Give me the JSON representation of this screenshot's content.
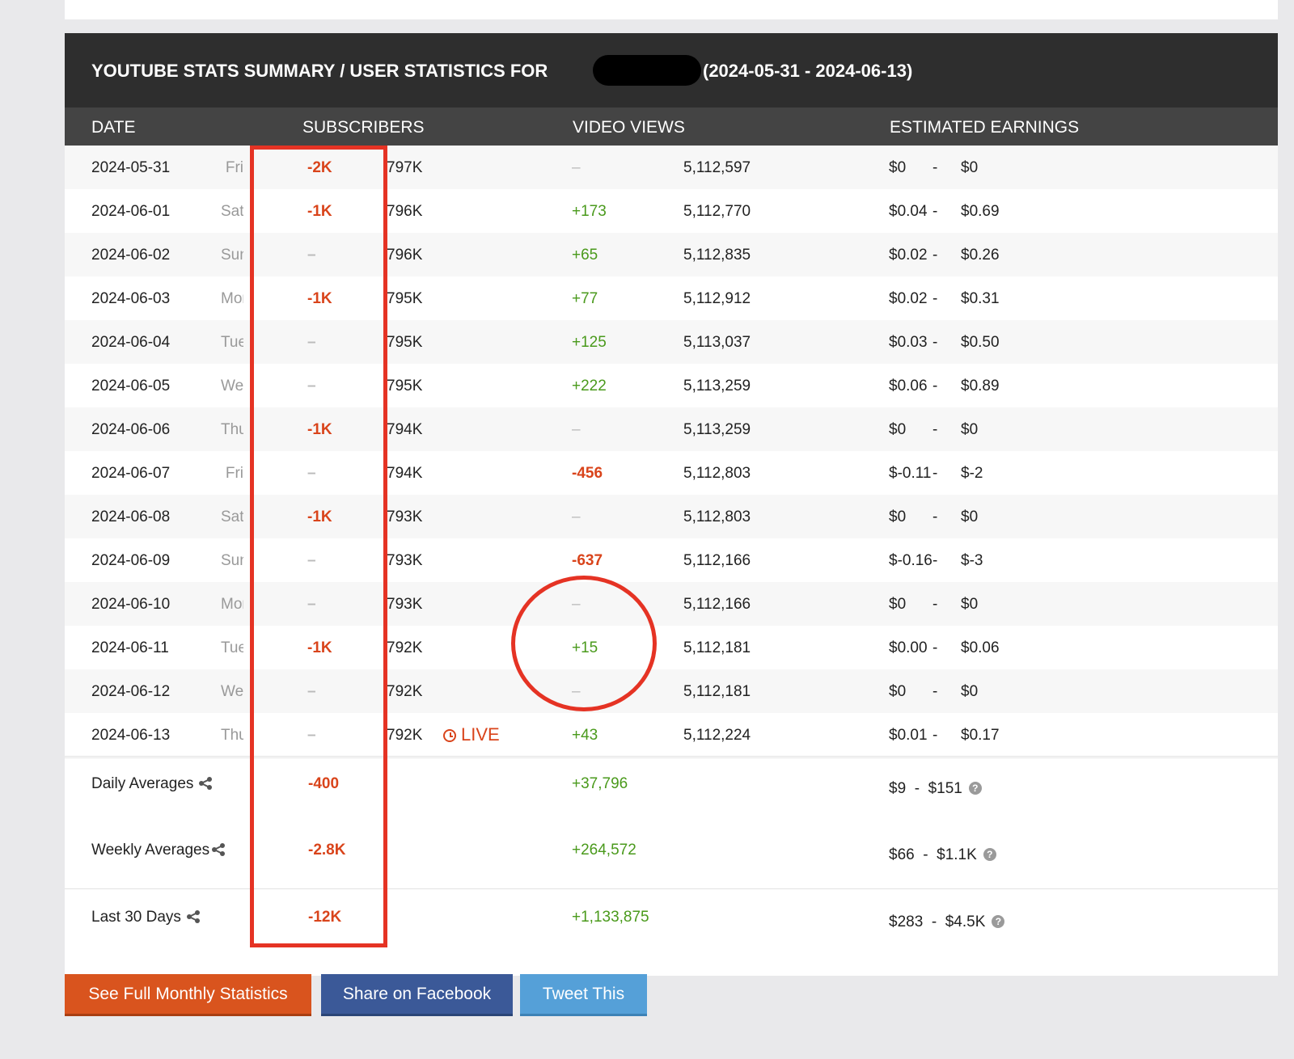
{
  "panel": {
    "title_prefix": "YOUTUBE STATS SUMMARY / USER STATISTICS FOR",
    "title_range": "(2024-05-31 - 2024-06-13)"
  },
  "columns": [
    "DATE",
    "SUBSCRIBERS",
    "VIDEO VIEWS",
    "ESTIMATED EARNINGS"
  ],
  "rows": [
    {
      "date": "2024-05-31",
      "dow": "Fri",
      "sub_delta": "-2K",
      "sub_delta_type": "neg",
      "subs": "797K",
      "views_delta": "–",
      "views_delta_type": "dash",
      "views": "5,112,597",
      "earn_lo": "$0",
      "earn_hi": "$0"
    },
    {
      "date": "2024-06-01",
      "dow": "Sat",
      "sub_delta": "-1K",
      "sub_delta_type": "neg",
      "subs": "796K",
      "views_delta": "+173",
      "views_delta_type": "pos",
      "views": "5,112,770",
      "earn_lo": "$0.04",
      "earn_hi": "$0.69"
    },
    {
      "date": "2024-06-02",
      "dow": "Sun",
      "sub_delta": "–",
      "sub_delta_type": "dash",
      "subs": "796K",
      "views_delta": "+65",
      "views_delta_type": "pos",
      "views": "5,112,835",
      "earn_lo": "$0.02",
      "earn_hi": "$0.26"
    },
    {
      "date": "2024-06-03",
      "dow": "Mon",
      "sub_delta": "-1K",
      "sub_delta_type": "neg",
      "subs": "795K",
      "views_delta": "+77",
      "views_delta_type": "pos",
      "views": "5,112,912",
      "earn_lo": "$0.02",
      "earn_hi": "$0.31"
    },
    {
      "date": "2024-06-04",
      "dow": "Tue",
      "sub_delta": "–",
      "sub_delta_type": "dash",
      "subs": "795K",
      "views_delta": "+125",
      "views_delta_type": "pos",
      "views": "5,113,037",
      "earn_lo": "$0.03",
      "earn_hi": "$0.50"
    },
    {
      "date": "2024-06-05",
      "dow": "Wed",
      "sub_delta": "–",
      "sub_delta_type": "dash",
      "subs": "795K",
      "views_delta": "+222",
      "views_delta_type": "pos",
      "views": "5,113,259",
      "earn_lo": "$0.06",
      "earn_hi": "$0.89"
    },
    {
      "date": "2024-06-06",
      "dow": "Thu",
      "sub_delta": "-1K",
      "sub_delta_type": "neg",
      "subs": "794K",
      "views_delta": "–",
      "views_delta_type": "dash",
      "views": "5,113,259",
      "earn_lo": "$0",
      "earn_hi": "$0"
    },
    {
      "date": "2024-06-07",
      "dow": "Fri",
      "sub_delta": "–",
      "sub_delta_type": "dash",
      "subs": "794K",
      "views_delta": "-456",
      "views_delta_type": "neg",
      "views": "5,112,803",
      "earn_lo": "$-0.11",
      "earn_hi": "$-2"
    },
    {
      "date": "2024-06-08",
      "dow": "Sat",
      "sub_delta": "-1K",
      "sub_delta_type": "neg",
      "subs": "793K",
      "views_delta": "–",
      "views_delta_type": "dash",
      "views": "5,112,803",
      "earn_lo": "$0",
      "earn_hi": "$0"
    },
    {
      "date": "2024-06-09",
      "dow": "Sun",
      "sub_delta": "–",
      "sub_delta_type": "dash",
      "subs": "793K",
      "views_delta": "-637",
      "views_delta_type": "neg",
      "views": "5,112,166",
      "earn_lo": "$-0.16",
      "earn_hi": "$-3"
    },
    {
      "date": "2024-06-10",
      "dow": "Mon",
      "sub_delta": "–",
      "sub_delta_type": "dash",
      "subs": "793K",
      "views_delta": "–",
      "views_delta_type": "dash",
      "views": "5,112,166",
      "earn_lo": "$0",
      "earn_hi": "$0"
    },
    {
      "date": "2024-06-11",
      "dow": "Tue",
      "sub_delta": "-1K",
      "sub_delta_type": "neg",
      "subs": "792K",
      "views_delta": "+15",
      "views_delta_type": "pos",
      "views": "5,112,181",
      "earn_lo": "$0.00",
      "earn_hi": "$0.06"
    },
    {
      "date": "2024-06-12",
      "dow": "Wed",
      "sub_delta": "–",
      "sub_delta_type": "dash",
      "subs": "792K",
      "views_delta": "–",
      "views_delta_type": "dash",
      "views": "5,112,181",
      "earn_lo": "$0",
      "earn_hi": "$0"
    },
    {
      "date": "2024-06-13",
      "dow": "Thu",
      "sub_delta": "–",
      "sub_delta_type": "dash",
      "subs": "792K",
      "views_delta": "+43",
      "views_delta_type": "pos",
      "views": "5,112,224",
      "earn_lo": "$0.01",
      "earn_hi": "$0.17",
      "live": "LIVE"
    }
  ],
  "earn_separator": "-",
  "summary": {
    "daily": {
      "label": "Daily Averages",
      "subs": "-400",
      "views": "+37,796",
      "earnings": "$9  -  $151"
    },
    "weekly": {
      "label": "Weekly Averages",
      "subs": "-2.8K",
      "views": "+264,572",
      "earnings": "$66  -  $1.1K"
    },
    "monthly": {
      "label": "Last 30 Days",
      "subs": "-12K",
      "views": "+1,133,875",
      "earnings": "$283  -  $4.5K"
    }
  },
  "help_glyph": "?",
  "buttons": {
    "monthly": "See Full Monthly Statistics",
    "facebook": "Share on Facebook",
    "tweet": "Tweet This"
  },
  "colors": {
    "negative": "#d9441b",
    "positive": "#4a9a1c",
    "annotation": "#e53324",
    "header_bg": "#2e2e2e",
    "facebook": "#3b5998",
    "twitter": "#55a0d8",
    "orange_button": "#d9541e"
  },
  "icons": [
    "share-icon",
    "help-icon",
    "clock-icon"
  ]
}
